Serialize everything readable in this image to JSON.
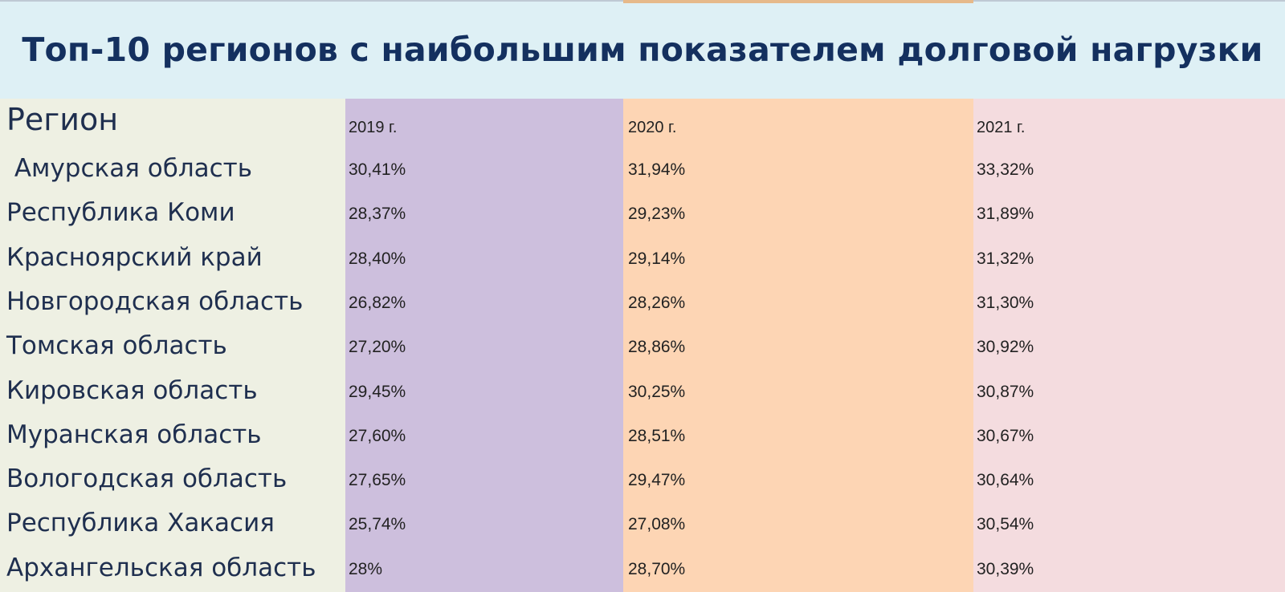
{
  "colors": {
    "title_band": "#def0f5",
    "title_text": "#14305f",
    "region_column": "#eef0e3",
    "col_2019": "#cdbfdd",
    "col_2020": "#fdd5b4",
    "col_2021": "#f4dcdf"
  },
  "chart_data": {
    "type": "table",
    "title": "Топ-10 регионов с наибольшим показателем долговой нагрузки",
    "columns": [
      "Регион",
      "2019 г.",
      "2020 г.",
      "2021 г."
    ],
    "rows": [
      {
        "region": " Амурская область",
        "values": [
          "30,41%",
          "31,94%",
          "33,32%"
        ]
      },
      {
        "region": "Республика Коми",
        "values": [
          "28,37%",
          "29,23%",
          "31,89%"
        ]
      },
      {
        "region": "Красноярский край",
        "values": [
          "28,40%",
          "29,14%",
          "31,32%"
        ]
      },
      {
        "region": "Новгородская область",
        "values": [
          "26,82%",
          "28,26%",
          "31,30%"
        ]
      },
      {
        "region": "Томская область",
        "values": [
          "27,20%",
          "28,86%",
          "30,92%"
        ]
      },
      {
        "region": "Кировская область",
        "values": [
          "29,45%",
          "30,25%",
          "30,87%"
        ]
      },
      {
        "region": "Муранская область",
        "values": [
          "27,60%",
          "28,51%",
          "30,67%"
        ]
      },
      {
        "region": "Вологодская область",
        "values": [
          "27,65%",
          "29,47%",
          "30,64%"
        ]
      },
      {
        "region": "Республика Хакасия",
        "values": [
          "25,74%",
          "27,08%",
          "30,54%"
        ]
      },
      {
        "region": "Архангельская область",
        "values": [
          "28%",
          "28,70%",
          "30,39%"
        ]
      }
    ]
  }
}
